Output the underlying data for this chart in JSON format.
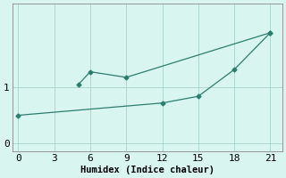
{
  "line1_x": [
    5,
    6,
    9,
    21
  ],
  "line1_y": [
    1.05,
    1.28,
    1.18,
    1.98
  ],
  "line2_x": [
    0,
    12,
    15,
    18,
    21
  ],
  "line2_y": [
    0.5,
    0.72,
    0.84,
    1.32,
    1.98
  ],
  "line_color": "#2d7d6e",
  "marker": "D",
  "markersize": 2.5,
  "linewidth": 0.9,
  "xlabel": "Humidex (Indice chaleur)",
  "xlim": [
    -0.5,
    22
  ],
  "ylim": [
    -0.15,
    2.5
  ],
  "xticks": [
    0,
    3,
    6,
    9,
    12,
    15,
    18,
    21
  ],
  "yticks": [
    0,
    1
  ],
  "bg_color": "#d8f5f0",
  "grid_color": "#aed8cf",
  "xlabel_fontsize": 7.5,
  "tick_fontsize": 8
}
